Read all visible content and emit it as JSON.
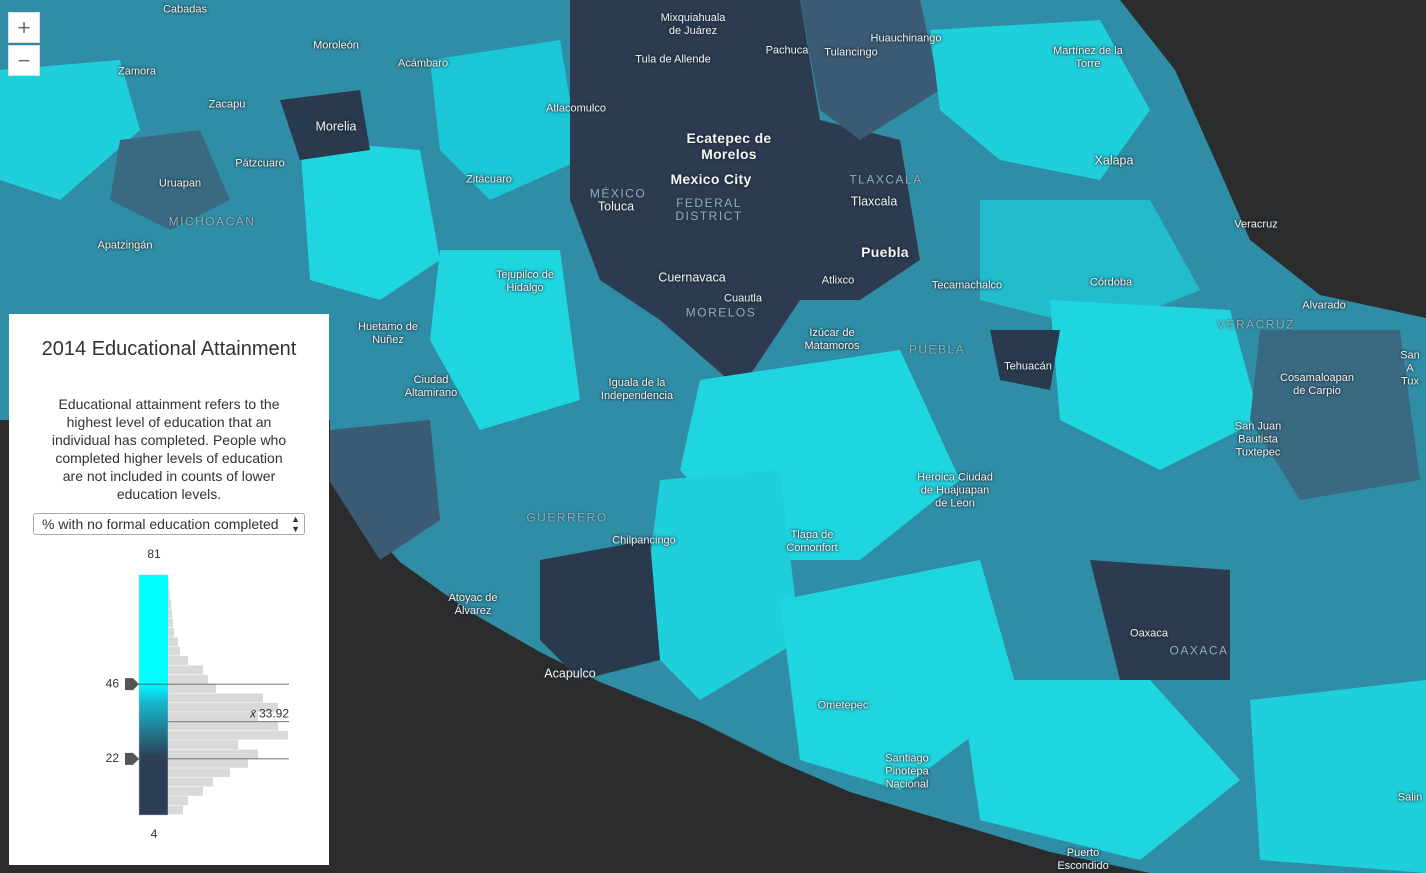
{
  "zoom": {
    "in": "+",
    "out": "−"
  },
  "map_labels": [
    {
      "text": "Cabadas",
      "kind": "city"
    },
    {
      "text": "Mixquiahuala\nde Juárez",
      "kind": "city"
    },
    {
      "text": "Pachuca",
      "kind": "city"
    },
    {
      "text": "Tulancingo",
      "kind": "city"
    },
    {
      "text": "Huauchinango",
      "kind": "city"
    },
    {
      "text": "Martínez de la\nTorre",
      "kind": "city"
    },
    {
      "text": "Moroleón",
      "kind": "city"
    },
    {
      "text": "Zamora",
      "kind": "city"
    },
    {
      "text": "Acámbaro",
      "kind": "city"
    },
    {
      "text": "Tula de Allende",
      "kind": "city"
    },
    {
      "text": "Zacapu",
      "kind": "city"
    },
    {
      "text": "Atlacomulco",
      "kind": "city"
    },
    {
      "text": "Morelia",
      "kind": "mid"
    },
    {
      "text": "Ecatepec de\nMorelos",
      "kind": "major"
    },
    {
      "text": "Pátzcuaro",
      "kind": "city"
    },
    {
      "text": "Xalapa",
      "kind": "mid"
    },
    {
      "text": "Uruapan",
      "kind": "city"
    },
    {
      "text": "Zitácuaro",
      "kind": "city"
    },
    {
      "text": "Mexico City",
      "kind": "major"
    },
    {
      "text": "MÉXICO",
      "kind": "region"
    },
    {
      "text": "Toluca",
      "kind": "mid"
    },
    {
      "text": "FEDERAL\nDISTRICT",
      "kind": "region"
    },
    {
      "text": "TLAXCALA",
      "kind": "region"
    },
    {
      "text": "Tlaxcala",
      "kind": "mid"
    },
    {
      "text": "MICHOACÁN",
      "kind": "region"
    },
    {
      "text": "Veracruz",
      "kind": "city"
    },
    {
      "text": "Apatzingán",
      "kind": "city"
    },
    {
      "text": "Puebla",
      "kind": "major"
    },
    {
      "text": "Tejupilco de\nHidalgo",
      "kind": "city"
    },
    {
      "text": "Cuernavaca",
      "kind": "mid"
    },
    {
      "text": "Atlixco",
      "kind": "city"
    },
    {
      "text": "Tecamachalco",
      "kind": "city"
    },
    {
      "text": "Córdoba",
      "kind": "city"
    },
    {
      "text": "Cuautla",
      "kind": "city"
    },
    {
      "text": "MORELOS",
      "kind": "region"
    },
    {
      "text": "Alvarado",
      "kind": "city"
    },
    {
      "text": "VERACRUZ",
      "kind": "region"
    },
    {
      "text": "Huetamo de\nNuñez",
      "kind": "city"
    },
    {
      "text": "Izúcar de\nMatamoros",
      "kind": "city"
    },
    {
      "text": "PUEBLA",
      "kind": "region"
    },
    {
      "text": "Tehuacán",
      "kind": "city"
    },
    {
      "text": "San A\nTux",
      "kind": "city"
    },
    {
      "text": "Cosamaloapan\nde Carpio",
      "kind": "city"
    },
    {
      "text": "Ciudad\nAltamirano",
      "kind": "city"
    },
    {
      "text": "Iguala de la\nIndependencia",
      "kind": "city"
    },
    {
      "text": "San Juan\nBautista\nTuxtepec",
      "kind": "city"
    },
    {
      "text": "Heroica Ciudad\nde Huajuapan\nde Leon",
      "kind": "city"
    },
    {
      "text": "GUERRERO",
      "kind": "region"
    },
    {
      "text": "Chilpancingo",
      "kind": "city"
    },
    {
      "text": "Tlapa de\nComonfort",
      "kind": "city"
    },
    {
      "text": "Atoyac de\nÁlvarez",
      "kind": "city"
    },
    {
      "text": "Oaxaca",
      "kind": "city"
    },
    {
      "text": "OAXACA",
      "kind": "region"
    },
    {
      "text": "Acapulco",
      "kind": "mid"
    },
    {
      "text": "Ometepec",
      "kind": "city"
    },
    {
      "text": "Santiago\nPinotepa\nNacional",
      "kind": "city"
    },
    {
      "text": "Salin",
      "kind": "city"
    },
    {
      "text": "Puerto\nEscondido",
      "kind": "city"
    }
  ],
  "legend": {
    "title": "2014 Educational Attainment",
    "description": "Educational attainment refers to the highest level of education that an individual has completed. People who completed higher levels of education are not included in counts of lower education levels.",
    "field_select": "% with no formal education completed",
    "slider": {
      "max": 81,
      "min": 4,
      "handles": [
        46,
        22
      ],
      "mean": {
        "symbol": "x̄",
        "value": 33.92
      }
    },
    "histogram": {
      "bins": [
        4,
        7,
        10,
        13,
        16,
        19,
        22,
        25,
        28,
        31,
        34,
        37,
        40,
        43,
        46,
        49,
        52,
        55,
        58,
        61,
        64,
        67,
        70,
        73,
        76,
        79
      ],
      "counts": [
        15,
        20,
        35,
        45,
        62,
        80,
        90,
        70,
        120,
        110,
        90,
        110,
        95,
        48,
        40,
        35,
        20,
        12,
        10,
        6,
        5,
        4,
        3,
        2,
        1
      ]
    }
  }
}
